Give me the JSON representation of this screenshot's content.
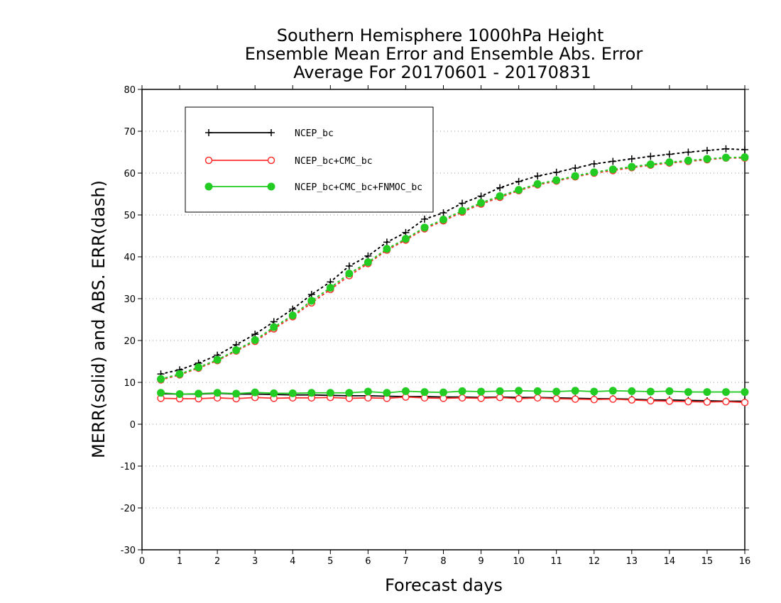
{
  "chart_data": {
    "type": "line",
    "title": [
      "Southern Hemisphere 1000hPa Height",
      "Ensemble Mean Error and Ensemble Abs. Error",
      "Average For 20170601 - 20170831"
    ],
    "xlabel": "Forecast days",
    "ylabel": "MERR(solid) and ABS. ERR(dash)",
    "xlim": [
      0,
      16
    ],
    "ylim": [
      -30,
      80
    ],
    "xticks": [
      "0",
      "1",
      "2",
      "3",
      "4",
      "5",
      "6",
      "7",
      "8",
      "9",
      "10",
      "11",
      "12",
      "13",
      "14",
      "15",
      "16"
    ],
    "yticks": [
      "-30",
      "-20",
      "-10",
      "0",
      "10",
      "20",
      "30",
      "40",
      "50",
      "60",
      "70",
      "80"
    ],
    "grid": "horizontal dotted",
    "legend_position": "top-left",
    "x": [
      0.5,
      1,
      1.5,
      2,
      2.5,
      3,
      3.5,
      4,
      4.5,
      5,
      5.5,
      6,
      6.5,
      7,
      7.5,
      8,
      8.5,
      9,
      9.5,
      10,
      10.5,
      11,
      11.5,
      12,
      12.5,
      13,
      13.5,
      14,
      14.5,
      15,
      15.5,
      16
    ],
    "series": [
      {
        "name": "NCEP_bc",
        "color": "#000000",
        "marker": "plus",
        "merr": [
          7.3,
          7.2,
          7.2,
          7.4,
          7.2,
          7.2,
          7.1,
          7.0,
          7.0,
          6.9,
          6.8,
          6.8,
          6.7,
          6.6,
          6.6,
          6.5,
          6.5,
          6.4,
          6.5,
          6.4,
          6.4,
          6.3,
          6.2,
          6.1,
          6.1,
          6.0,
          5.8,
          5.8,
          5.7,
          5.6,
          5.5,
          5.5
        ],
        "abs_err": [
          12.0,
          13.0,
          14.6,
          16.5,
          19.0,
          21.5,
          24.5,
          27.5,
          31.0,
          34.0,
          37.8,
          40.2,
          43.5,
          45.8,
          49.0,
          50.5,
          52.8,
          54.5,
          56.5,
          58.0,
          59.3,
          60.2,
          61.2,
          62.2,
          62.8,
          63.4,
          64.0,
          64.5,
          65.0,
          65.4,
          65.8,
          65.6
        ]
      },
      {
        "name": "NCEP_bc+CMC_bc",
        "color": "#ff3030",
        "marker": "open-circle",
        "merr": [
          6.2,
          6.1,
          6.1,
          6.3,
          6.1,
          6.4,
          6.2,
          6.3,
          6.3,
          6.4,
          6.2,
          6.3,
          6.2,
          6.5,
          6.3,
          6.2,
          6.3,
          6.2,
          6.4,
          6.1,
          6.3,
          6.1,
          6.0,
          5.9,
          6.0,
          5.8,
          5.6,
          5.5,
          5.4,
          5.3,
          5.4,
          5.2
        ],
        "abs_err": [
          10.6,
          11.8,
          13.4,
          15.2,
          17.5,
          19.8,
          22.8,
          25.7,
          29.0,
          32.2,
          35.5,
          38.4,
          41.6,
          44.0,
          46.7,
          48.6,
          50.7,
          52.6,
          54.2,
          55.8,
          57.2,
          58.1,
          59.1,
          60.0,
          60.6,
          61.3,
          61.9,
          62.4,
          62.8,
          63.2,
          63.6,
          63.6
        ]
      },
      {
        "name": "NCEP_bc+CMC_bc+FNMOC_bc",
        "color": "#22cc22",
        "marker": "filled-circle",
        "merr": [
          7.5,
          7.2,
          7.3,
          7.5,
          7.3,
          7.6,
          7.4,
          7.4,
          7.5,
          7.5,
          7.5,
          7.8,
          7.5,
          7.9,
          7.7,
          7.6,
          7.9,
          7.8,
          7.9,
          8.0,
          7.9,
          7.8,
          8.0,
          7.8,
          8.0,
          7.9,
          7.8,
          7.9,
          7.7,
          7.7,
          7.7,
          7.7
        ],
        "abs_err": [
          10.8,
          12.0,
          13.6,
          15.4,
          17.7,
          20.1,
          23.2,
          26.0,
          29.5,
          32.6,
          36.0,
          38.7,
          41.9,
          44.3,
          47.0,
          48.9,
          51.0,
          52.9,
          54.5,
          56.0,
          57.4,
          58.3,
          59.3,
          60.2,
          60.9,
          61.5,
          62.1,
          62.6,
          63.0,
          63.4,
          63.7,
          63.8
        ]
      }
    ]
  }
}
